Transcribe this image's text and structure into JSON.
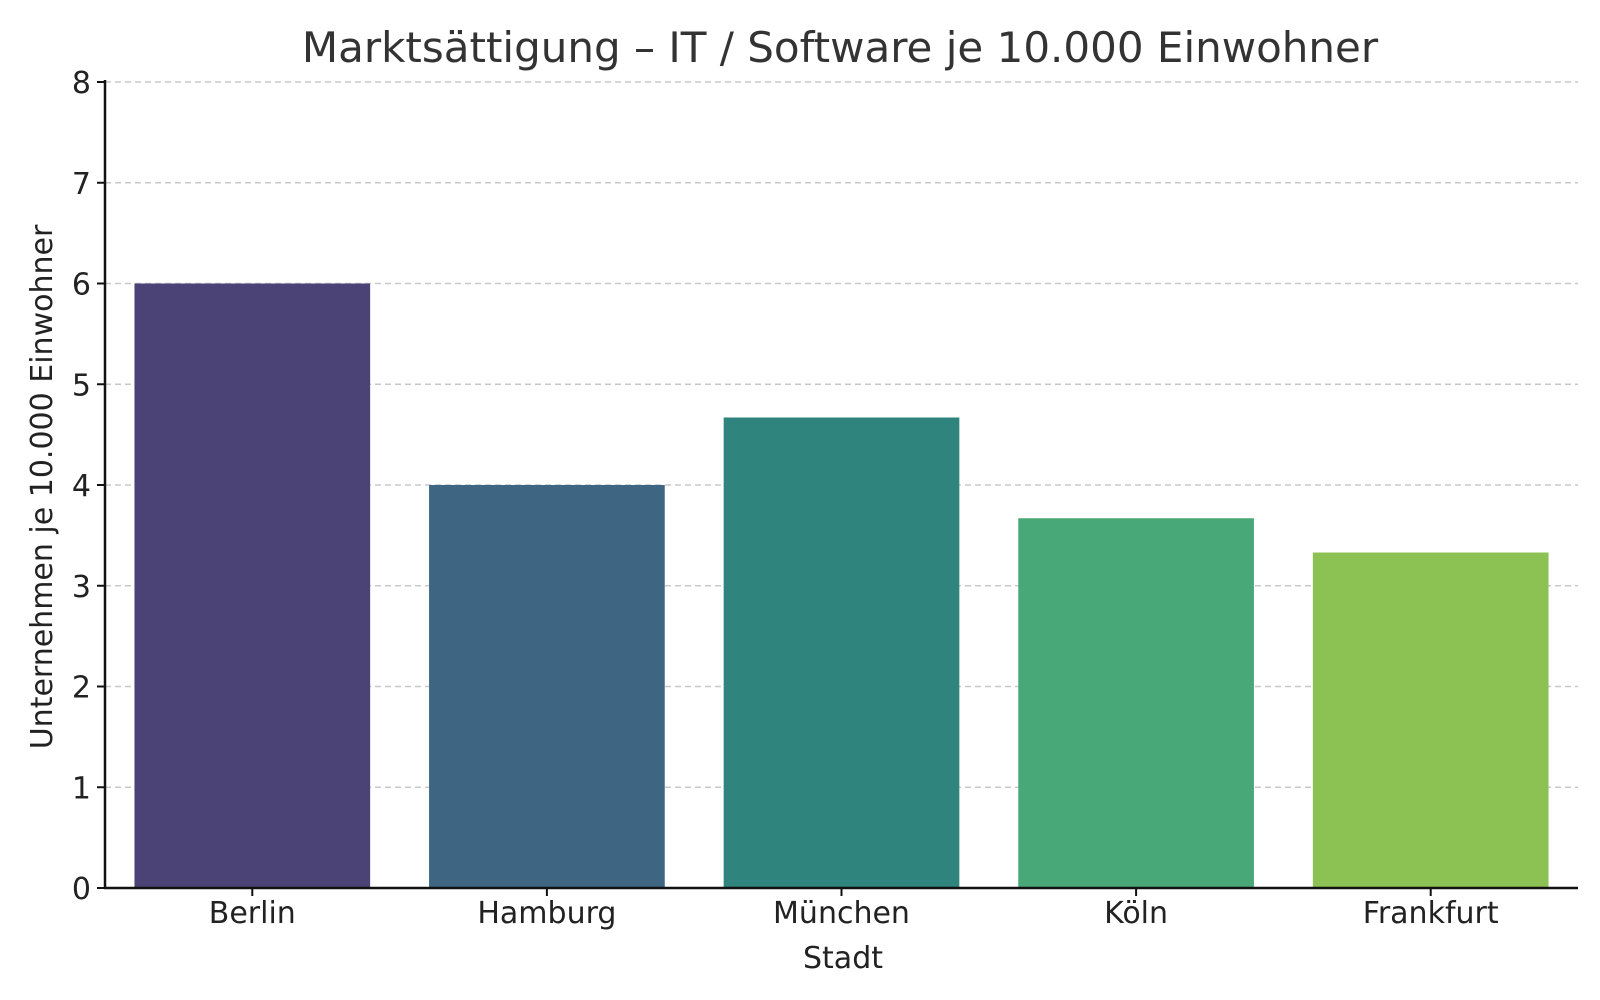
{
  "chart_data": {
    "type": "bar",
    "title": "Marktsättigung – IT / Software je 10.000 Einwohner",
    "xlabel": "Stadt",
    "ylabel": "Unternehmen je 10.000 Einwohner",
    "categories": [
      "Berlin",
      "Hamburg",
      "München",
      "Köln",
      "Frankfurt"
    ],
    "values": [
      6.0,
      4.0,
      4.67,
      3.67,
      3.33
    ],
    "colors": [
      "#4b4276",
      "#3e6682",
      "#2f847d",
      "#48a878",
      "#8cc254"
    ],
    "ylim": [
      0,
      8
    ],
    "yticks": [
      "0",
      "1",
      "2",
      "3",
      "4",
      "5",
      "6",
      "7",
      "8"
    ],
    "grid": true,
    "grid_axis": "y",
    "legend": false
  }
}
